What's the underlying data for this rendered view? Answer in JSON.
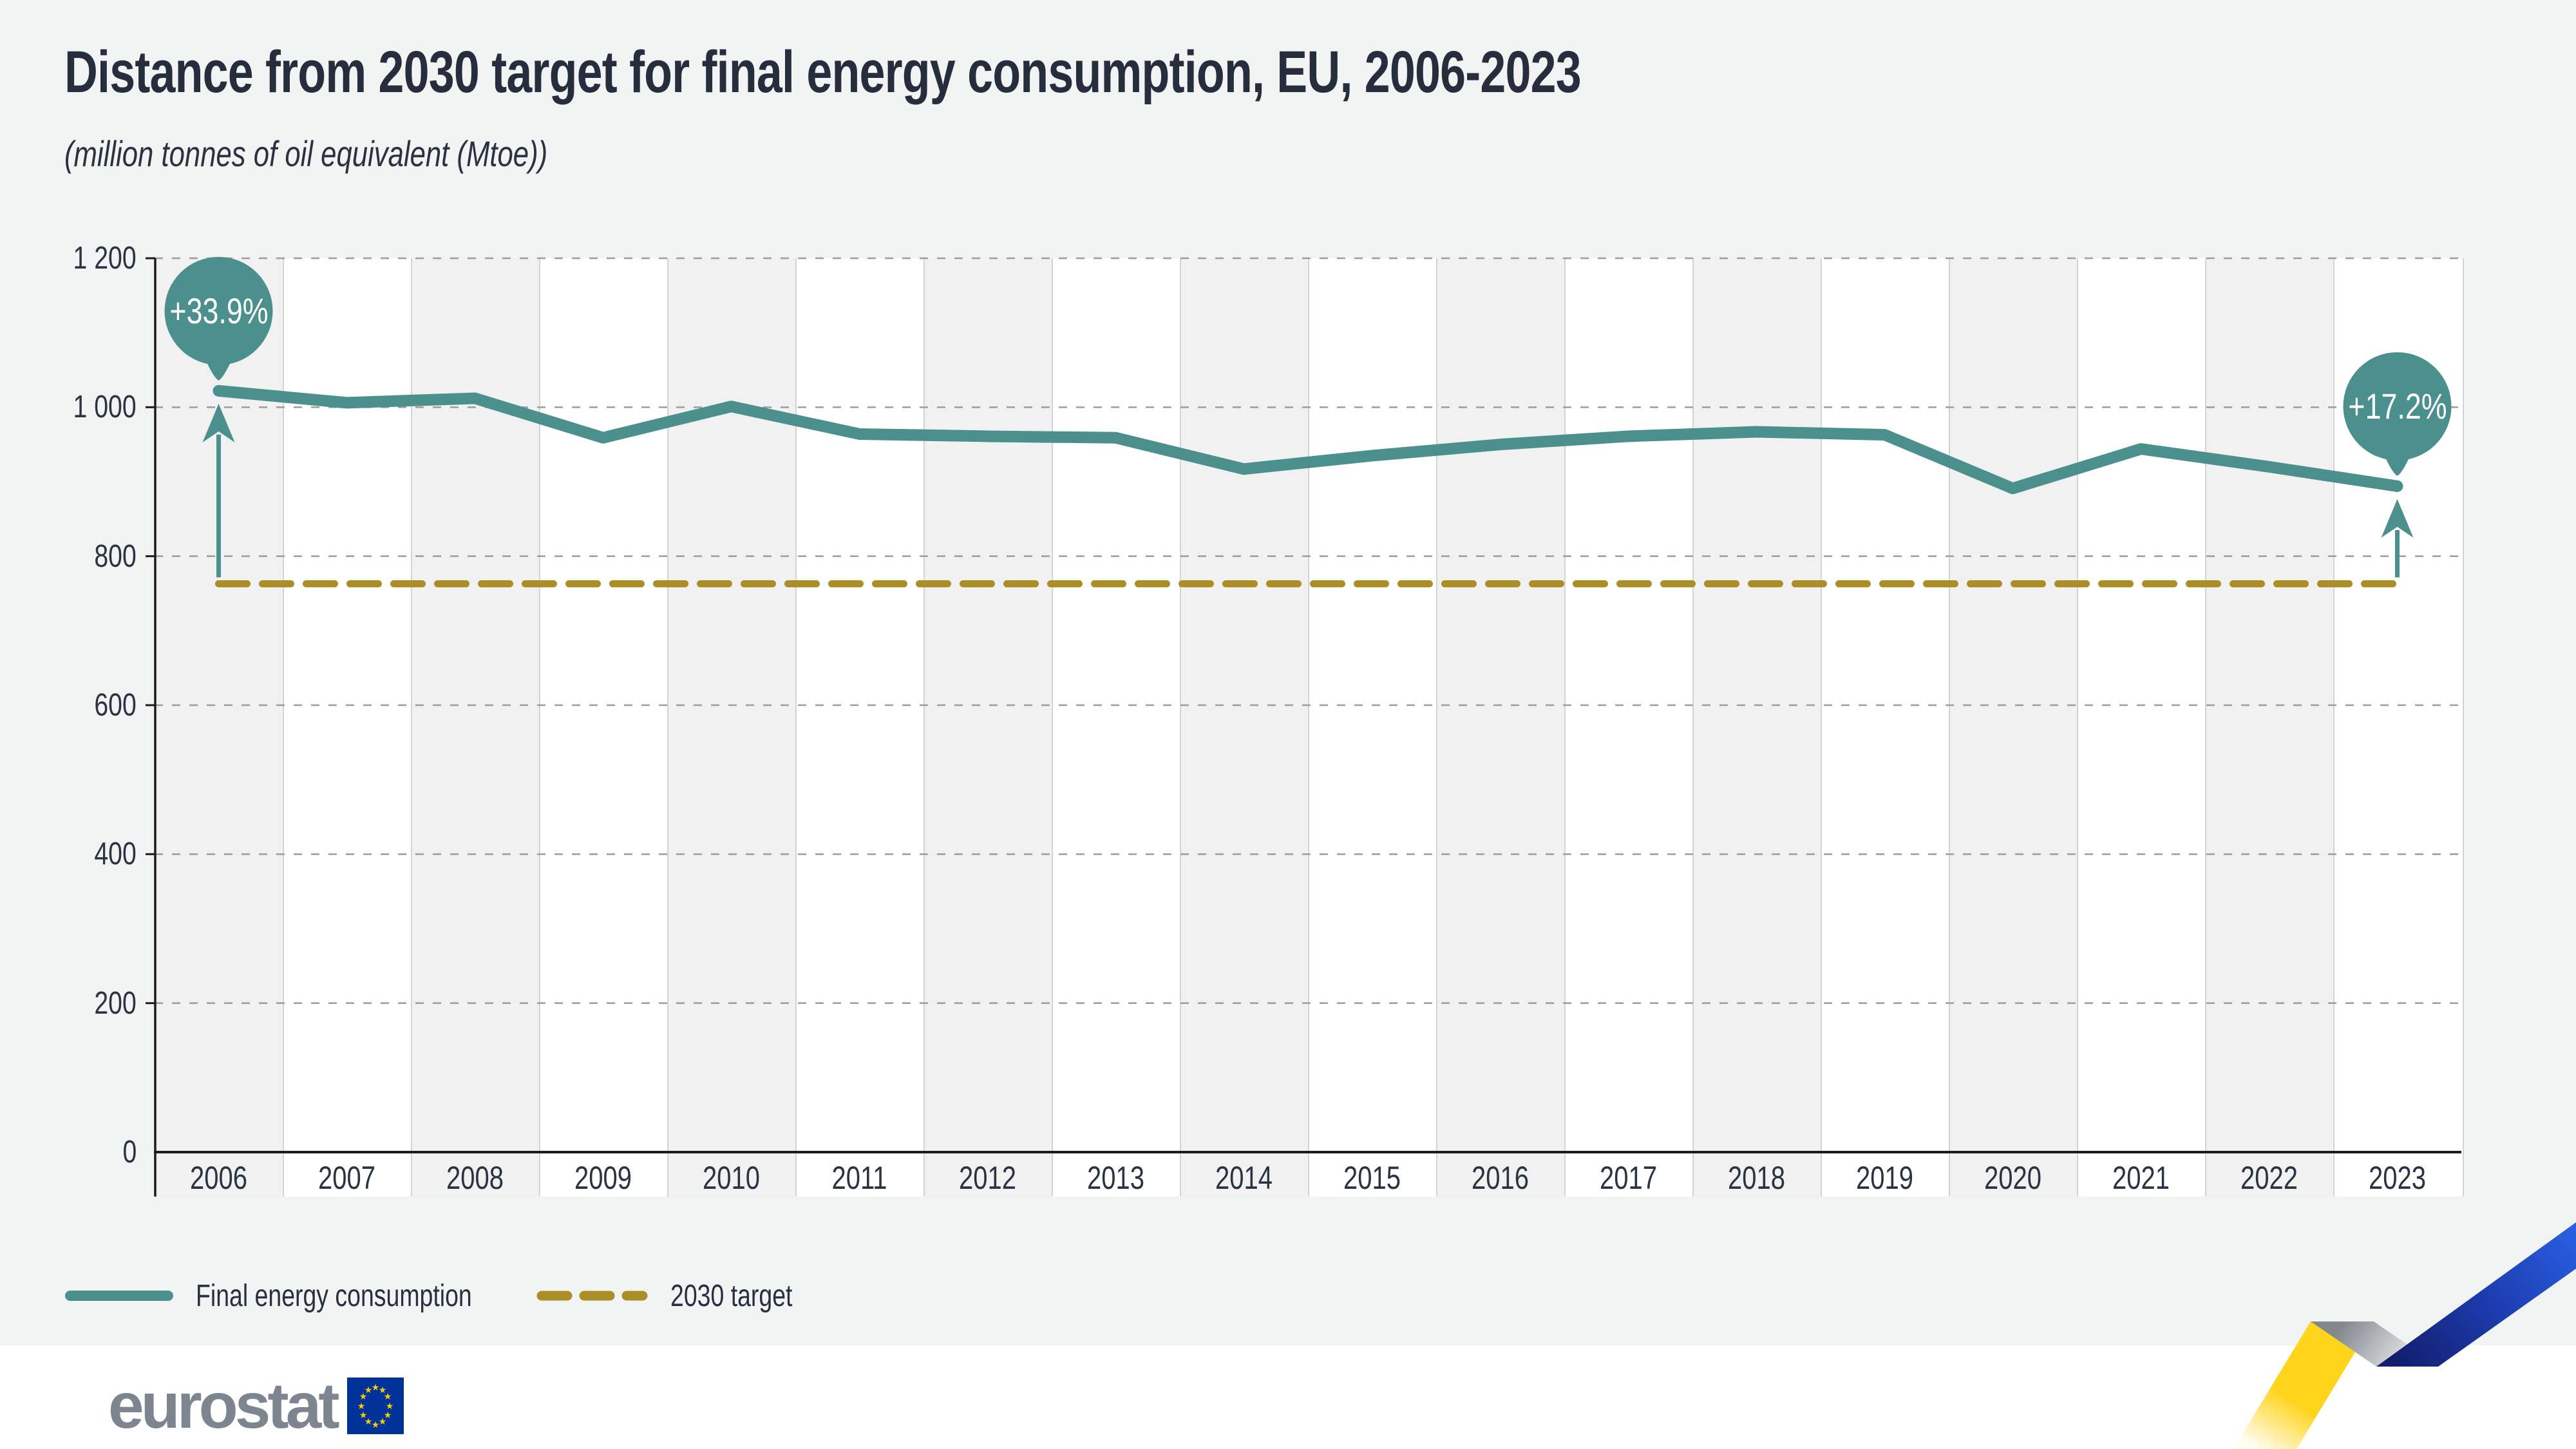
{
  "chart_data": {
    "type": "line",
    "title": "Distance from 2030 target for final energy consumption, EU, 2006-2023",
    "subtitle": "(million tonnes of oil equivalent (Mtoe))",
    "unit": "Mtoe",
    "x": [
      "2006",
      "2007",
      "2008",
      "2009",
      "2010",
      "2011",
      "2012",
      "2013",
      "2014",
      "2015",
      "2016",
      "2017",
      "2018",
      "2019",
      "2020",
      "2021",
      "2022",
      "2023"
    ],
    "series": [
      {
        "name": "Final energy consumption",
        "style": "solid",
        "color": "#4c908e",
        "values": [
          1022,
          1006,
          1012,
          959,
          1001,
          964,
          961,
          959,
          917,
          935,
          950,
          961,
          967,
          963,
          891,
          944,
          920,
          894
        ]
      },
      {
        "name": "2030 target",
        "style": "dashed",
        "color": "#ac8e27",
        "constant_value": 763
      }
    ],
    "ylim": [
      0,
      1200
    ],
    "ytick_values": [
      0,
      200,
      400,
      600,
      800,
      1000,
      1200
    ],
    "ytick_labels": [
      "0",
      "200",
      "400",
      "600",
      "800",
      "1 000",
      "1 200"
    ],
    "grid": "horizontal-dashed",
    "legend_position": "bottom-left",
    "annotations": [
      {
        "x": "2006",
        "label": "+33.9%"
      },
      {
        "x": "2023",
        "label": "+17.2%"
      }
    ]
  },
  "footer": {
    "logo_text": "eurostat"
  },
  "colors": {
    "teal": "#4c908e",
    "gold": "#ac8e27",
    "navy_text": "#2a3140",
    "page_bg": "#f2f3f3",
    "band_white": "#ffffff",
    "band_gray": "#f1f1f1",
    "grid": "#9c9c9c",
    "axis": "#1c1c1c",
    "logo_gray": "#7d8690",
    "eu_blue": "#003399",
    "star_yellow": "#ffcc00",
    "zig_yellow": "#ffd41c",
    "zig_blue": "#2a5ce0"
  }
}
